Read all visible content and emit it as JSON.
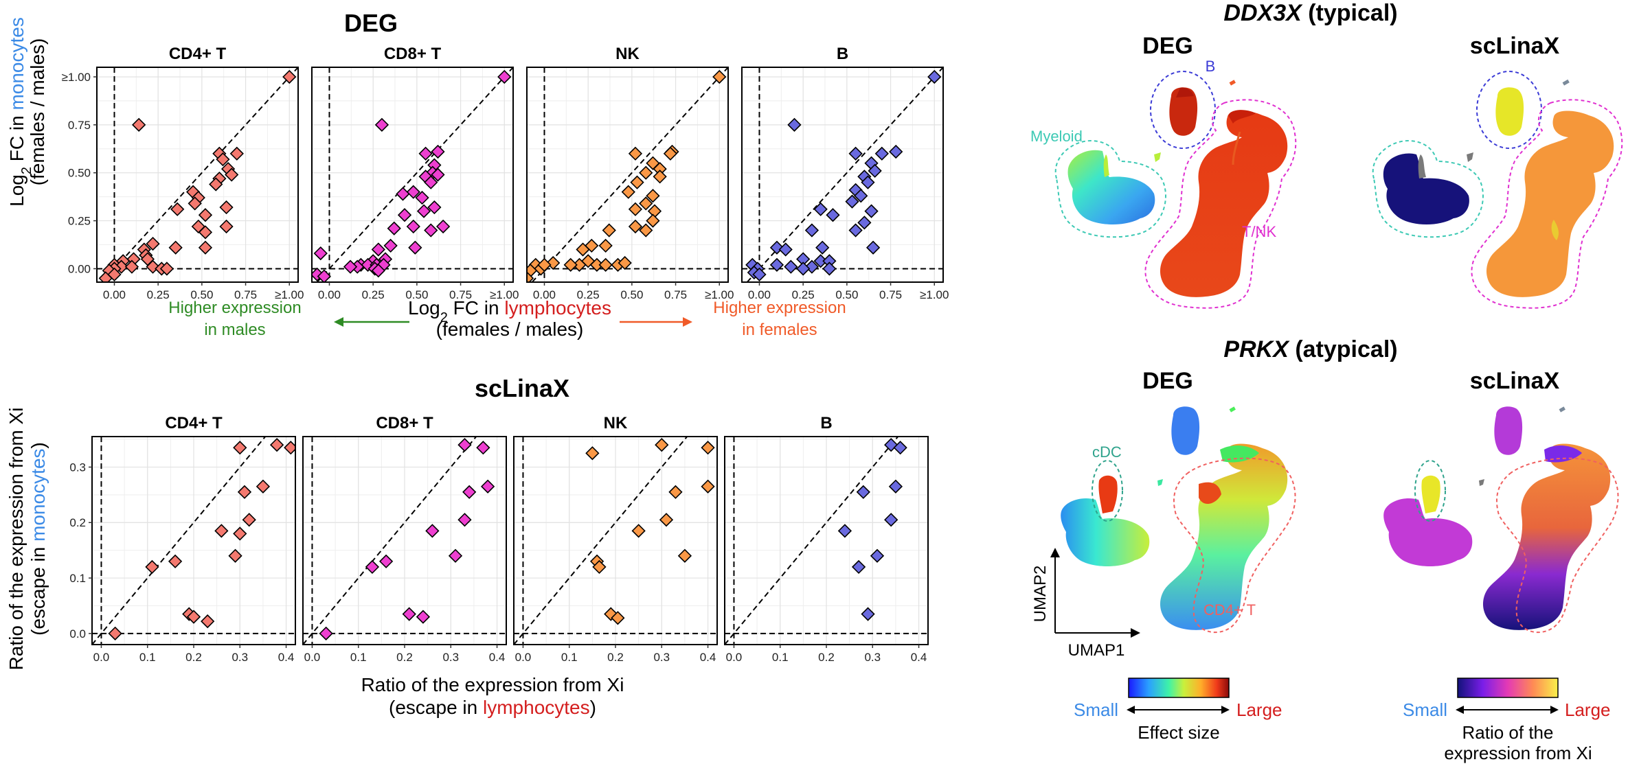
{
  "colors": {
    "CD4+ T": "#f4796f",
    "CD8+ T": "#ee3fd0",
    "NK": "#fa9846",
    "B": "#6a6adf",
    "gridline": "#e6e6e6",
    "male_arrow": "#2e8b24",
    "female_arrow": "#f05a28",
    "lymphocytes_text": "#d41e1e",
    "monocytes_text": "#3b8ae6",
    "myeloid_outline": "#3cc9b4",
    "b_outline": "#3b3bd6",
    "tnk_outline": "#e030d0",
    "cdc_outline": "#2fa38c",
    "cd4_outline": "#f06060",
    "small_label": "#3b8ae6",
    "large_label": "#d41e1e"
  },
  "chart_data": [
    {
      "type": "scatter",
      "title": "DEG",
      "panels": [
        "CD4+ T",
        "CD8+ T",
        "NK",
        "B"
      ],
      "xlabel": {
        "prefix": "Log",
        "sub": "2",
        "middle": " FC in ",
        "colored": "lymphocytes",
        "line2": "(females / males)"
      },
      "ylabel": {
        "line1_prefix": "Log",
        "line1_sub": "2",
        "line1_middle": " FC in ",
        "line1_colored": "monocytes",
        "line2": "(females / males)"
      },
      "xlim": [
        -0.1,
        1.05
      ],
      "ylim": [
        -0.07,
        1.05
      ],
      "xticks": [
        {
          "v": 0,
          "label": "0.00"
        },
        {
          "v": 0.25,
          "label": "0.25"
        },
        {
          "v": 0.5,
          "label": "0.50"
        },
        {
          "v": 0.75,
          "label": "0.75"
        },
        {
          "v": 1.0,
          "label": "≥1.00"
        }
      ],
      "yticks": [
        {
          "v": 0,
          "label": "0.00"
        },
        {
          "v": 0.25,
          "label": "0.25"
        },
        {
          "v": 0.5,
          "label": "0.50"
        },
        {
          "v": 0.75,
          "label": "0.75"
        },
        {
          "v": 1.0,
          "label": "≥1.00"
        }
      ],
      "ref_lines": {
        "vertical_x": 0,
        "horizontal_y": 0,
        "diagonal": true
      },
      "series": [
        {
          "name": "CD4+ T",
          "points": [
            [
              1.0,
              1.0
            ],
            [
              0.14,
              0.75
            ],
            [
              0.6,
              0.6
            ],
            [
              0.7,
              0.6
            ],
            [
              0.62,
              0.57
            ],
            [
              0.65,
              0.52
            ],
            [
              0.6,
              0.47
            ],
            [
              0.67,
              0.49
            ],
            [
              0.58,
              0.44
            ],
            [
              0.45,
              0.4
            ],
            [
              0.48,
              0.37
            ],
            [
              0.46,
              0.34
            ],
            [
              0.64,
              0.32
            ],
            [
              0.36,
              0.31
            ],
            [
              0.52,
              0.28
            ],
            [
              0.48,
              0.22
            ],
            [
              0.52,
              0.19
            ],
            [
              0.64,
              0.22
            ],
            [
              0.52,
              0.11
            ],
            [
              0.35,
              0.11
            ],
            [
              0.22,
              0.13
            ],
            [
              0.17,
              0.1
            ],
            [
              0.18,
              0.07
            ],
            [
              0.11,
              0.05
            ],
            [
              0.19,
              0.05
            ],
            [
              0.05,
              0.04
            ],
            [
              0.0,
              0.02
            ],
            [
              0.04,
              0.01
            ],
            [
              0.1,
              0.01
            ],
            [
              0.22,
              0.01
            ],
            [
              0.27,
              0.0
            ],
            [
              0.3,
              0.0
            ],
            [
              0.0,
              0.0
            ],
            [
              -0.03,
              -0.01
            ],
            [
              0.0,
              -0.03
            ],
            [
              -0.05,
              -0.05
            ]
          ]
        },
        {
          "name": "CD8+ T",
          "points": [
            [
              1.0,
              1.0
            ],
            [
              0.3,
              0.75
            ],
            [
              0.62,
              0.61
            ],
            [
              0.55,
              0.6
            ],
            [
              0.6,
              0.54
            ],
            [
              0.59,
              0.5
            ],
            [
              0.55,
              0.48
            ],
            [
              0.62,
              0.49
            ],
            [
              0.58,
              0.45
            ],
            [
              0.48,
              0.4
            ],
            [
              0.53,
              0.37
            ],
            [
              0.42,
              0.39
            ],
            [
              0.6,
              0.32
            ],
            [
              0.54,
              0.3
            ],
            [
              0.43,
              0.28
            ],
            [
              0.48,
              0.22
            ],
            [
              0.58,
              0.2
            ],
            [
              0.65,
              0.22
            ],
            [
              0.37,
              0.21
            ],
            [
              0.35,
              0.12
            ],
            [
              0.49,
              0.11
            ],
            [
              0.28,
              0.1
            ],
            [
              0.32,
              0.05
            ],
            [
              0.25,
              0.04
            ],
            [
              0.18,
              0.02
            ],
            [
              0.22,
              0.02
            ],
            [
              0.27,
              0.02
            ],
            [
              0.31,
              0.02
            ],
            [
              0.16,
              0.01
            ],
            [
              0.12,
              0.01
            ],
            [
              0.26,
              0.0
            ],
            [
              0.28,
              -0.01
            ],
            [
              -0.05,
              0.08
            ],
            [
              -0.07,
              -0.03
            ],
            [
              -0.03,
              -0.04
            ]
          ]
        },
        {
          "name": "NK",
          "points": [
            [
              1.0,
              1.0
            ],
            [
              0.73,
              0.61
            ],
            [
              0.52,
              0.6
            ],
            [
              0.72,
              0.6
            ],
            [
              0.62,
              0.55
            ],
            [
              0.66,
              0.52
            ],
            [
              0.58,
              0.5
            ],
            [
              0.66,
              0.48
            ],
            [
              0.53,
              0.45
            ],
            [
              0.48,
              0.4
            ],
            [
              0.62,
              0.38
            ],
            [
              0.58,
              0.34
            ],
            [
              0.63,
              0.3
            ],
            [
              0.52,
              0.31
            ],
            [
              0.62,
              0.25
            ],
            [
              0.52,
              0.22
            ],
            [
              0.58,
              0.2
            ],
            [
              0.37,
              0.2
            ],
            [
              0.35,
              0.12
            ],
            [
              0.27,
              0.12
            ],
            [
              0.22,
              0.1
            ],
            [
              0.25,
              0.04
            ],
            [
              0.2,
              0.02
            ],
            [
              0.3,
              0.02
            ],
            [
              0.35,
              0.02
            ],
            [
              0.42,
              0.02
            ],
            [
              0.46,
              0.03
            ],
            [
              0.15,
              0.02
            ],
            [
              0.05,
              0.03
            ],
            [
              -0.05,
              0.02
            ],
            [
              -0.02,
              0.0
            ],
            [
              0.0,
              0.02
            ],
            [
              -0.08,
              -0.01
            ],
            [
              -0.1,
              -0.05
            ]
          ]
        },
        {
          "name": "B",
          "points": [
            [
              1.0,
              1.0
            ],
            [
              0.2,
              0.75
            ],
            [
              0.78,
              0.61
            ],
            [
              0.55,
              0.6
            ],
            [
              0.7,
              0.6
            ],
            [
              0.64,
              0.55
            ],
            [
              0.66,
              0.51
            ],
            [
              0.6,
              0.48
            ],
            [
              0.62,
              0.45
            ],
            [
              0.55,
              0.41
            ],
            [
              0.58,
              0.38
            ],
            [
              0.53,
              0.35
            ],
            [
              0.64,
              0.3
            ],
            [
              0.35,
              0.31
            ],
            [
              0.42,
              0.28
            ],
            [
              0.6,
              0.24
            ],
            [
              0.55,
              0.2
            ],
            [
              0.3,
              0.2
            ],
            [
              0.65,
              0.11
            ],
            [
              0.36,
              0.11
            ],
            [
              0.1,
              0.11
            ],
            [
              0.15,
              0.1
            ],
            [
              0.25,
              0.05
            ],
            [
              0.35,
              0.04
            ],
            [
              0.4,
              0.04
            ],
            [
              0.1,
              0.02
            ],
            [
              0.18,
              0.01
            ],
            [
              0.3,
              0.01
            ],
            [
              0.4,
              0.0
            ],
            [
              0.25,
              0.0
            ],
            [
              -0.04,
              0.02
            ],
            [
              -0.01,
              0.0
            ],
            [
              -0.03,
              -0.02
            ],
            [
              0.0,
              -0.03
            ]
          ]
        }
      ],
      "annotations": {
        "left": {
          "line1": "Higher expression",
          "line2": "in males"
        },
        "right": {
          "line1": "Higher expression",
          "line2": "in females"
        }
      }
    },
    {
      "type": "scatter",
      "title": "scLinaX",
      "panels": [
        "CD4+ T",
        "CD8+ T",
        "NK",
        "B"
      ],
      "xlabel": {
        "line1": "Ratio of the expression from Xi",
        "line2_prefix": "(escape in ",
        "line2_colored": "lymphocytes",
        "line2_suffix": ")"
      },
      "ylabel": {
        "line1": "Ratio of the expression from Xi",
        "line2_prefix": "(escape in ",
        "line2_colored": "monocytes",
        "line2_suffix": ")"
      },
      "xlim": [
        -0.02,
        0.42
      ],
      "ylim": [
        -0.02,
        0.355
      ],
      "xticks": [
        {
          "v": 0,
          "label": "0.0"
        },
        {
          "v": 0.1,
          "label": "0.1"
        },
        {
          "v": 0.2,
          "label": "0.2"
        },
        {
          "v": 0.3,
          "label": "0.3"
        },
        {
          "v": 0.4,
          "label": "0.4"
        }
      ],
      "yticks": [
        {
          "v": 0,
          "label": "0.0"
        },
        {
          "v": 0.1,
          "label": "0.1"
        },
        {
          "v": 0.2,
          "label": "0.2"
        },
        {
          "v": 0.3,
          "label": "0.3"
        }
      ],
      "ref_lines": {
        "vertical_x": 0,
        "horizontal_y": 0,
        "diagonal": true
      },
      "series": [
        {
          "name": "CD4+ T",
          "points": [
            [
              0.03,
              0.0
            ],
            [
              0.11,
              0.12
            ],
            [
              0.16,
              0.13
            ],
            [
              0.19,
              0.035
            ],
            [
              0.2,
              0.03
            ],
            [
              0.23,
              0.022
            ],
            [
              0.26,
              0.185
            ],
            [
              0.29,
              0.14
            ],
            [
              0.3,
              0.18
            ],
            [
              0.31,
              0.255
            ],
            [
              0.32,
              0.205
            ],
            [
              0.35,
              0.265
            ],
            [
              0.3,
              0.335
            ],
            [
              0.38,
              0.34
            ],
            [
              0.41,
              0.335
            ]
          ]
        },
        {
          "name": "CD8+ T",
          "points": [
            [
              0.03,
              0.0
            ],
            [
              0.13,
              0.12
            ],
            [
              0.16,
              0.13
            ],
            [
              0.21,
              0.035
            ],
            [
              0.24,
              0.03
            ],
            [
              0.26,
              0.185
            ],
            [
              0.31,
              0.14
            ],
            [
              0.33,
              0.205
            ],
            [
              0.34,
              0.255
            ],
            [
              0.38,
              0.265
            ],
            [
              0.33,
              0.34
            ],
            [
              0.37,
              0.335
            ]
          ]
        },
        {
          "name": "NK",
          "points": [
            [
              0.15,
              0.325
            ],
            [
              0.16,
              0.13
            ],
            [
              0.165,
              0.12
            ],
            [
              0.19,
              0.035
            ],
            [
              0.205,
              0.028
            ],
            [
              0.25,
              0.185
            ],
            [
              0.3,
              0.34
            ],
            [
              0.31,
              0.205
            ],
            [
              0.33,
              0.255
            ],
            [
              0.35,
              0.14
            ],
            [
              0.4,
              0.335
            ],
            [
              0.4,
              0.265
            ]
          ]
        },
        {
          "name": "B",
          "points": [
            [
              0.24,
              0.185
            ],
            [
              0.27,
              0.12
            ],
            [
              0.28,
              0.255
            ],
            [
              0.29,
              0.035
            ],
            [
              0.31,
              0.14
            ],
            [
              0.34,
              0.205
            ],
            [
              0.35,
              0.265
            ],
            [
              0.34,
              0.34
            ],
            [
              0.36,
              0.335
            ]
          ]
        }
      ]
    }
  ],
  "umap": {
    "top_title": {
      "gene": "DDX3X",
      "suffix": " (typical)"
    },
    "bottom_title": {
      "gene": "PRKX",
      "suffix": " (atypical)"
    },
    "col_deg": "DEG",
    "col_sclinax": "scLinaX",
    "labels": {
      "b": "B",
      "myeloid": "Myeloid",
      "tnk": "T/NK",
      "cdc": "cDC",
      "cd4": "CD4+ T"
    },
    "axis_x": "UMAP1",
    "axis_y": "UMAP2"
  },
  "legends": {
    "effect": {
      "small": "Small",
      "large": "Large",
      "caption": "Effect size"
    },
    "ratio": {
      "small": "Small",
      "large": "Large",
      "caption_line1": "Ratio of the",
      "caption_line2": "expression from Xi"
    }
  }
}
